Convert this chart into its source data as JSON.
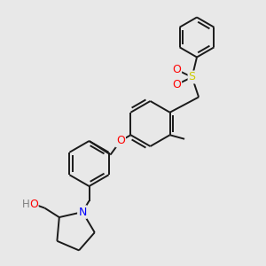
{
  "bg_color": "#e8e8e8",
  "bond_color": "#1a1a1a",
  "atom_colors": {
    "O": "#ff0000",
    "S": "#cccc00",
    "N": "#0000ff",
    "HO": "#808080",
    "C": "#1a1a1a"
  },
  "line_width": 1.4,
  "font_size": 8.5
}
